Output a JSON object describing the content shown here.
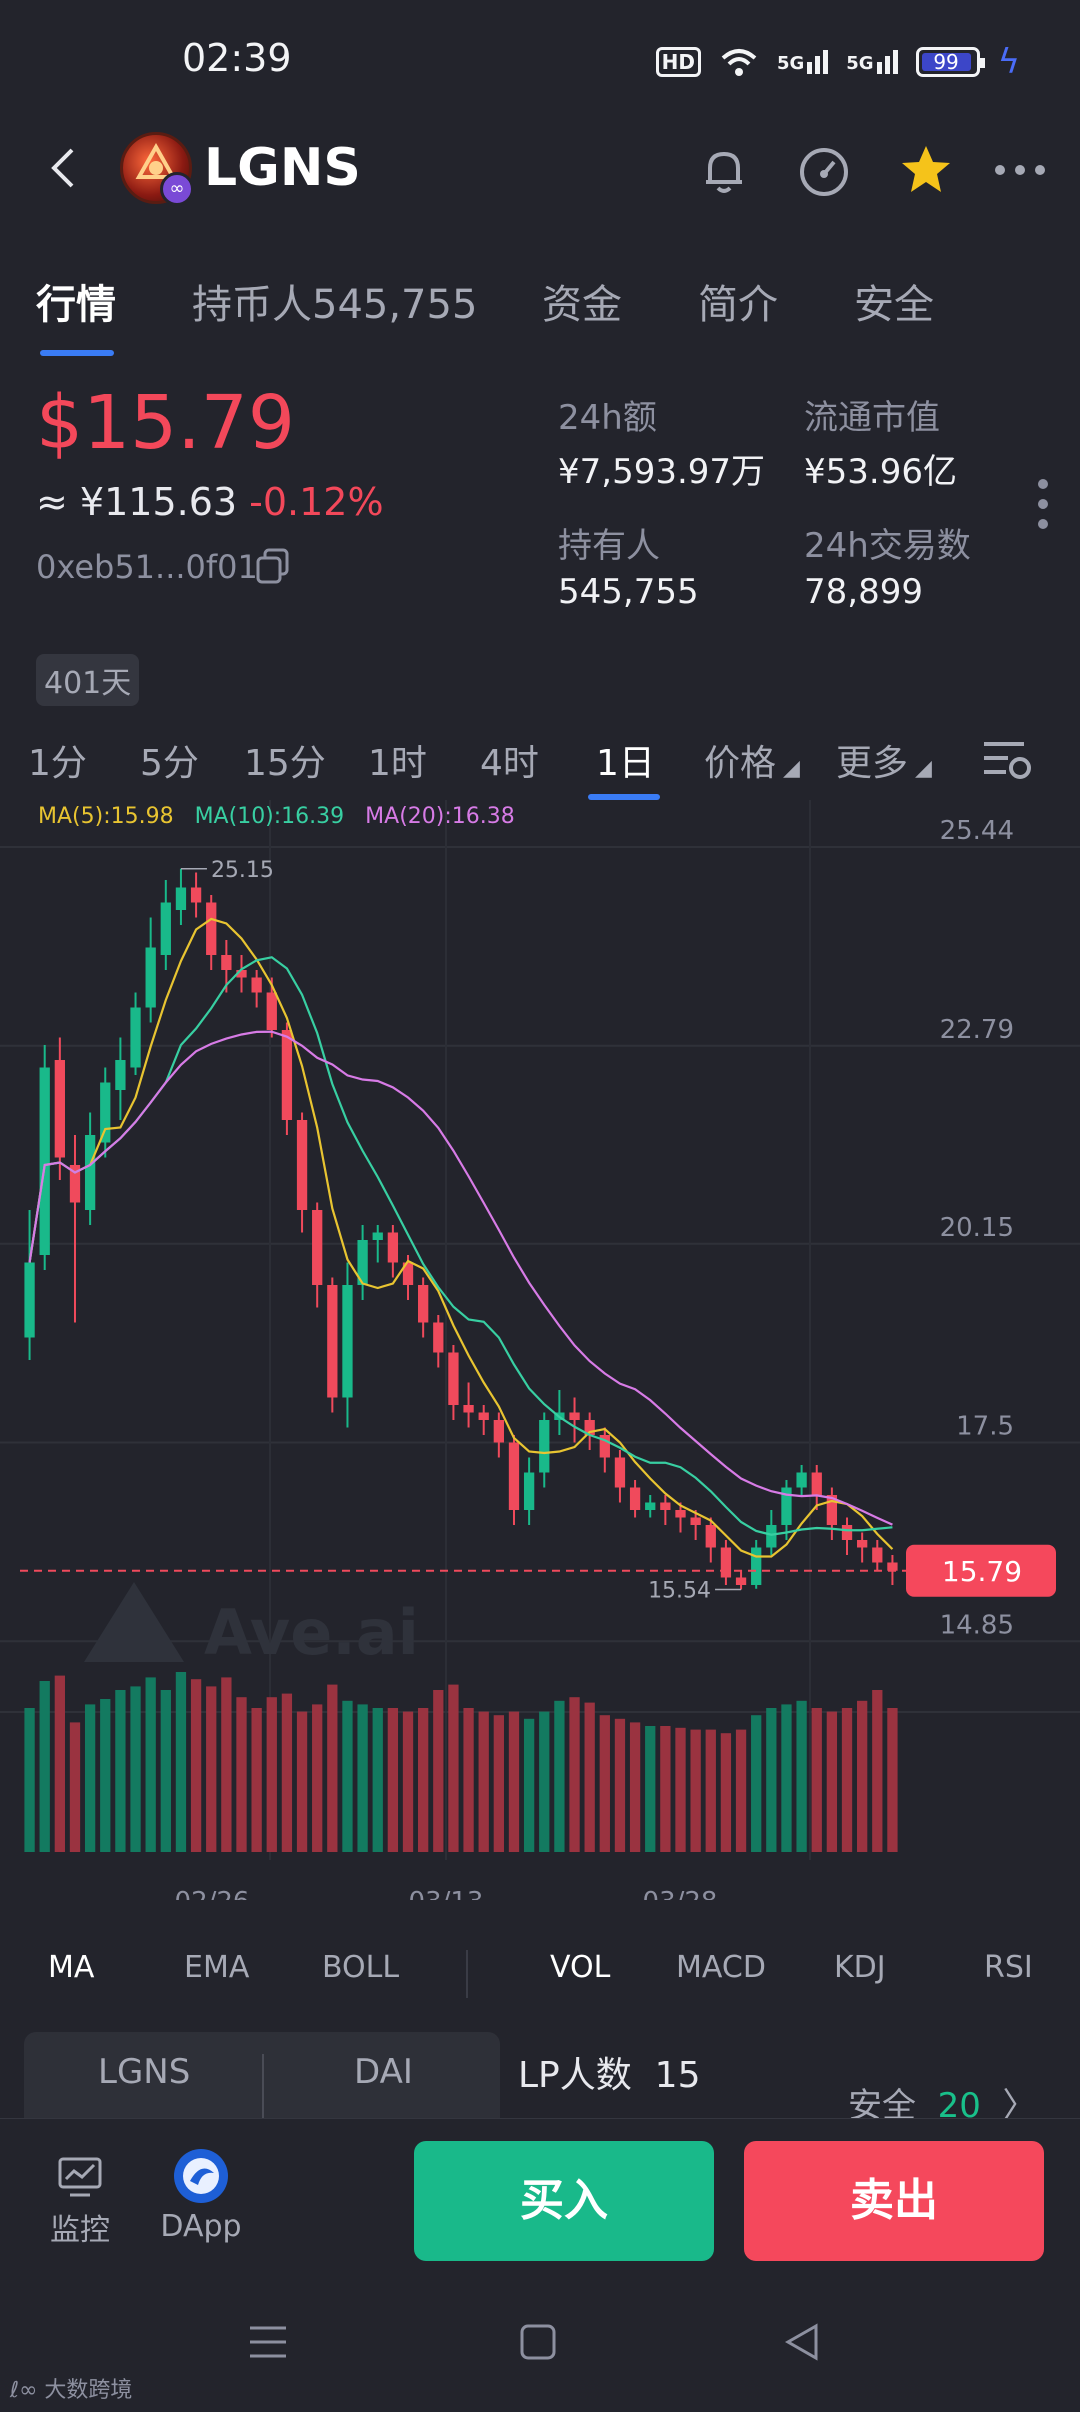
{
  "status_bar": {
    "time": "02:39",
    "hd": "HD",
    "net1": "5G",
    "net2": "5G",
    "battery": "99"
  },
  "header": {
    "coin_name": "LGNS"
  },
  "tabs": [
    {
      "label": "行情",
      "active": true
    },
    {
      "label": "持币人545,755"
    },
    {
      "label": "资金"
    },
    {
      "label": "简介"
    },
    {
      "label": "安全"
    }
  ],
  "summary": {
    "price": "$15.79",
    "cny_price": "≈ ¥115.63",
    "change": "-0.12%",
    "address": "0xeb51...0f01",
    "stats": [
      {
        "label": "24h额",
        "value": "¥7,593.97万"
      },
      {
        "label": "流通市值",
        "value": "¥53.96亿"
      },
      {
        "label": "持有人",
        "value": "545,755"
      },
      {
        "label": "24h交易数",
        "value": "78,899"
      }
    ],
    "age": "401天"
  },
  "intervals": [
    "1分",
    "5分",
    "15分",
    "1时",
    "4时",
    "1日"
  ],
  "interval_active": "1日",
  "interval_menus": {
    "price": "价格",
    "more": "更多"
  },
  "ma_legend": {
    "ma5": "MA(5):15.98",
    "ma10": "MA(10):16.39",
    "ma20": "MA(20):16.38"
  },
  "chart_watermark": "Ave.ai",
  "chart_data": {
    "type": "candlestick",
    "y_ticks": [
      "25.44",
      "22.79",
      "20.15",
      "17.5",
      "14.85"
    ],
    "x_ticks": [
      "02/26",
      "03/13",
      "03/28"
    ],
    "high_label": "25.15",
    "low_label": "15.54",
    "current_label": "15.79",
    "ylim": [
      14.2,
      25.8
    ],
    "candles": [
      [
        18.9,
        19.9,
        18.6,
        20.6
      ],
      [
        20.0,
        22.5,
        19.8,
        22.8
      ],
      [
        22.6,
        21.3,
        21.0,
        22.9
      ],
      [
        21.2,
        20.7,
        19.1,
        21.6
      ],
      [
        20.6,
        21.6,
        20.4,
        21.9
      ],
      [
        21.5,
        22.3,
        21.3,
        22.5
      ],
      [
        22.2,
        22.6,
        21.8,
        22.9
      ],
      [
        22.5,
        23.3,
        22.4,
        23.5
      ],
      [
        23.3,
        24.1,
        23.1,
        24.5
      ],
      [
        24.0,
        24.7,
        23.8,
        25.0
      ],
      [
        24.6,
        24.9,
        24.4,
        25.15
      ],
      [
        24.9,
        24.7,
        24.5,
        25.1
      ],
      [
        24.7,
        24.0,
        23.8,
        24.8
      ],
      [
        24.0,
        23.8,
        23.5,
        24.2
      ],
      [
        23.8,
        23.7,
        23.5,
        24.0
      ],
      [
        23.7,
        23.5,
        23.3,
        23.8
      ],
      [
        23.5,
        23.0,
        22.9,
        23.7
      ],
      [
        23.0,
        21.8,
        21.6,
        23.1
      ],
      [
        21.8,
        20.6,
        20.3,
        21.9
      ],
      [
        20.6,
        19.6,
        19.3,
        20.7
      ],
      [
        19.6,
        18.1,
        17.9,
        19.7
      ],
      [
        18.1,
        19.6,
        17.7,
        19.9
      ],
      [
        19.6,
        20.2,
        19.4,
        20.4
      ],
      [
        20.2,
        20.3,
        19.9,
        20.4
      ],
      [
        20.3,
        19.9,
        19.7,
        20.4
      ],
      [
        19.9,
        19.6,
        19.4,
        20.0
      ],
      [
        19.6,
        19.1,
        18.9,
        19.7
      ],
      [
        19.1,
        18.7,
        18.5,
        19.2
      ],
      [
        18.7,
        18.0,
        17.8,
        18.8
      ],
      [
        18.0,
        17.9,
        17.7,
        18.3
      ],
      [
        17.9,
        17.8,
        17.6,
        18.0
      ],
      [
        17.8,
        17.5,
        17.3,
        17.9
      ],
      [
        17.5,
        16.6,
        16.4,
        17.6
      ],
      [
        16.6,
        17.1,
        16.4,
        17.3
      ],
      [
        17.1,
        17.8,
        16.9,
        17.9
      ],
      [
        17.8,
        17.9,
        17.6,
        18.2
      ],
      [
        17.9,
        17.8,
        17.5,
        18.1
      ],
      [
        17.8,
        17.6,
        17.4,
        17.9
      ],
      [
        17.6,
        17.3,
        17.1,
        17.7
      ],
      [
        17.3,
        16.9,
        16.7,
        17.4
      ],
      [
        16.9,
        16.6,
        16.5,
        17.0
      ],
      [
        16.6,
        16.7,
        16.5,
        16.8
      ],
      [
        16.7,
        16.6,
        16.4,
        16.8
      ],
      [
        16.6,
        16.5,
        16.3,
        16.7
      ],
      [
        16.5,
        16.4,
        16.2,
        16.6
      ],
      [
        16.4,
        16.1,
        15.9,
        16.5
      ],
      [
        16.1,
        15.7,
        15.6,
        16.2
      ],
      [
        15.7,
        15.6,
        15.54,
        15.8
      ],
      [
        15.6,
        16.1,
        15.55,
        16.2
      ],
      [
        16.1,
        16.4,
        16.0,
        16.6
      ],
      [
        16.4,
        16.9,
        16.2,
        17.0
      ],
      [
        16.9,
        17.1,
        16.8,
        17.2
      ],
      [
        17.1,
        16.8,
        16.6,
        17.2
      ],
      [
        16.8,
        16.4,
        16.2,
        16.9
      ],
      [
        16.4,
        16.2,
        16.0,
        16.5
      ],
      [
        16.2,
        16.1,
        15.9,
        16.3
      ],
      [
        16.1,
        15.9,
        15.8,
        16.2
      ],
      [
        15.9,
        15.79,
        15.6,
        16.0
      ]
    ],
    "volume_scale": [
      0.8,
      0.95,
      0.98,
      0.72,
      0.82,
      0.85,
      0.9,
      0.92,
      0.97,
      0.9,
      1.0,
      0.96,
      0.92,
      0.97,
      0.86,
      0.8,
      0.86,
      0.88,
      0.78,
      0.82,
      0.93,
      0.84,
      0.82,
      0.8,
      0.8,
      0.78,
      0.8,
      0.9,
      0.93,
      0.8,
      0.78,
      0.76,
      0.78,
      0.74,
      0.78,
      0.84,
      0.86,
      0.83,
      0.76,
      0.74,
      0.72,
      0.7,
      0.7,
      0.69,
      0.68,
      0.68,
      0.66,
      0.68,
      0.76,
      0.8,
      0.82,
      0.84,
      0.8,
      0.78,
      0.8,
      0.84,
      0.9,
      0.8
    ]
  },
  "indicators": {
    "main": [
      "MA",
      "EMA",
      "BOLL"
    ],
    "sub": [
      "VOL",
      "MACD",
      "KDJ",
      "RSI"
    ],
    "main_active": "MA",
    "sub_active": "VOL"
  },
  "pool": {
    "token_a": "LGNS",
    "token_b": "DAI",
    "lp_label": "LP人数",
    "lp_count": "15",
    "safe_label": "安全",
    "safe_score": "20"
  },
  "bottom": {
    "monitor": "监控",
    "dapp": "DApp",
    "buy": "买入",
    "sell": "卖出"
  },
  "credit": "大数跨境",
  "colors": {
    "up": "#19b98a",
    "down": "#f04a5c",
    "ma5": "#e8c431",
    "ma10": "#38cfa2",
    "ma20": "#d77be6",
    "accent": "#3a7cf5"
  }
}
